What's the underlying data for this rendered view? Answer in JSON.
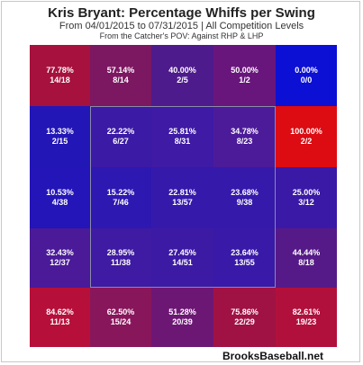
{
  "chart_data": {
    "type": "heatmap",
    "title": "Kris Bryant: Percentage Whiffs per Swing",
    "subtitle": "From 04/01/2015 to 07/31/2015 | All Competition Levels",
    "note": "From the Catcher's POV:  Against RHP & LHP",
    "rows": [
      [
        {
          "pct": "77.78%",
          "count": "14/18",
          "color": "#a6113d"
        },
        {
          "pct": "57.14%",
          "count": "8/14",
          "color": "#7c1762"
        },
        {
          "pct": "40.00%",
          "count": "2/5",
          "color": "#4e1b8c"
        },
        {
          "pct": "50.00%",
          "count": "1/2",
          "color": "#68167b"
        },
        {
          "pct": "0.00%",
          "count": "0/0",
          "color": "#0c10d4"
        }
      ],
      [
        {
          "pct": "13.33%",
          "count": "2/15",
          "color": "#2316b6"
        },
        {
          "pct": "22.22%",
          "count": "6/27",
          "color": "#3b1aa6"
        },
        {
          "pct": "25.81%",
          "count": "8/31",
          "color": "#3e1aa5"
        },
        {
          "pct": "34.78%",
          "count": "8/23",
          "color": "#4c1b9a"
        },
        {
          "pct": "100.00%",
          "count": "2/2",
          "color": "#dc0c12"
        }
      ],
      [
        {
          "pct": "10.53%",
          "count": "4/38",
          "color": "#2415b8"
        },
        {
          "pct": "15.22%",
          "count": "7/46",
          "color": "#2d18b1"
        },
        {
          "pct": "22.81%",
          "count": "13/57",
          "color": "#3519ab"
        },
        {
          "pct": "23.68%",
          "count": "9/38",
          "color": "#3519ab"
        },
        {
          "pct": "25.00%",
          "count": "3/12",
          "color": "#3a19a6"
        }
      ],
      [
        {
          "pct": "32.43%",
          "count": "12/37",
          "color": "#4a1a98"
        },
        {
          "pct": "28.95%",
          "count": "11/38",
          "color": "#3f1aa2"
        },
        {
          "pct": "27.45%",
          "count": "14/51",
          "color": "#3d1aa4"
        },
        {
          "pct": "23.64%",
          "count": "13/55",
          "color": "#3919a8"
        },
        {
          "pct": "44.44%",
          "count": "8/18",
          "color": "#561a88"
        }
      ],
      [
        {
          "pct": "84.62%",
          "count": "11/13",
          "color": "#b6103a"
        },
        {
          "pct": "62.50%",
          "count": "15/24",
          "color": "#88165b"
        },
        {
          "pct": "51.28%",
          "count": "20/39",
          "color": "#6d1775"
        },
        {
          "pct": "75.86%",
          "count": "22/29",
          "color": "#a01244"
        },
        {
          "pct": "82.61%",
          "count": "19/23",
          "color": "#b2103c"
        }
      ]
    ]
  },
  "footer": {
    "brand": "BrooksBaseball.net"
  }
}
